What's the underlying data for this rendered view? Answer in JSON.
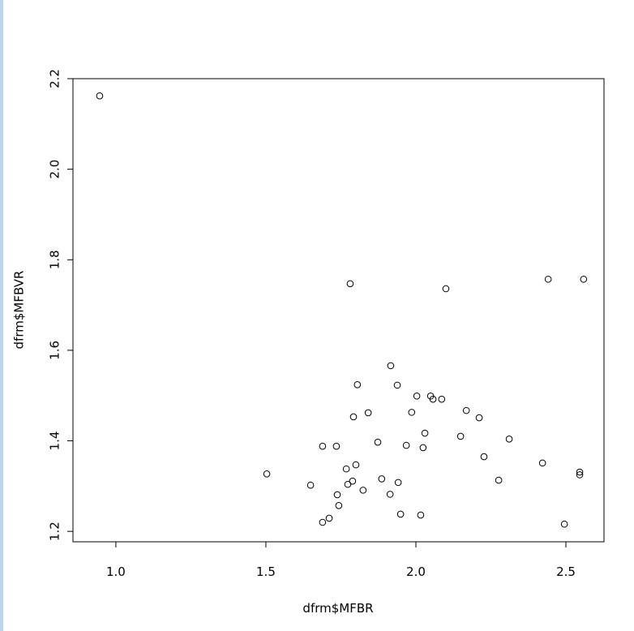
{
  "chart_data": {
    "type": "scatter",
    "x_label": "dfrm$MFBR",
    "y_label": "dfrm$MFBVR",
    "color": "#000000",
    "x": [
      0.946,
      1.503,
      1.649,
      1.689,
      1.689,
      1.711,
      1.735,
      1.738,
      1.743,
      1.768,
      1.773,
      1.781,
      1.789,
      1.792,
      1.8,
      1.805,
      1.824,
      1.841,
      1.873,
      1.886,
      1.914,
      1.916,
      1.938,
      1.941,
      1.949,
      1.968,
      1.986,
      2.003,
      2.016,
      2.024,
      2.03,
      2.049,
      2.057,
      2.086,
      2.1,
      2.149,
      2.168,
      2.211,
      2.227,
      2.276,
      2.311,
      2.422,
      2.441,
      2.495,
      2.546,
      2.546,
      2.559
    ],
    "values": [
      2.162,
      1.327,
      1.302,
      1.388,
      1.22,
      1.229,
      1.388,
      1.281,
      1.257,
      1.338,
      1.304,
      1.747,
      1.311,
      1.453,
      1.347,
      1.524,
      1.291,
      1.462,
      1.397,
      1.316,
      1.282,
      1.566,
      1.523,
      1.308,
      1.238,
      1.39,
      1.463,
      1.499,
      1.236,
      1.385,
      1.417,
      1.499,
      1.492,
      1.492,
      1.736,
      1.41,
      1.467,
      1.451,
      1.365,
      1.313,
      1.404,
      1.351,
      1.757,
      1.216,
      1.331,
      1.325,
      1.757
    ],
    "xlim": [
      0.857,
      2.627
    ],
    "ylim": [
      1.177,
      2.2
    ],
    "xticks": [
      {
        "value": 1,
        "label": "1.0"
      },
      1.5,
      {
        "value": 2,
        "label": "2.0"
      },
      2.5
    ],
    "yticks": [
      1.2,
      1.4,
      1.6,
      1.8,
      {
        "value": 2,
        "label": "2.0"
      },
      2.2
    ]
  }
}
